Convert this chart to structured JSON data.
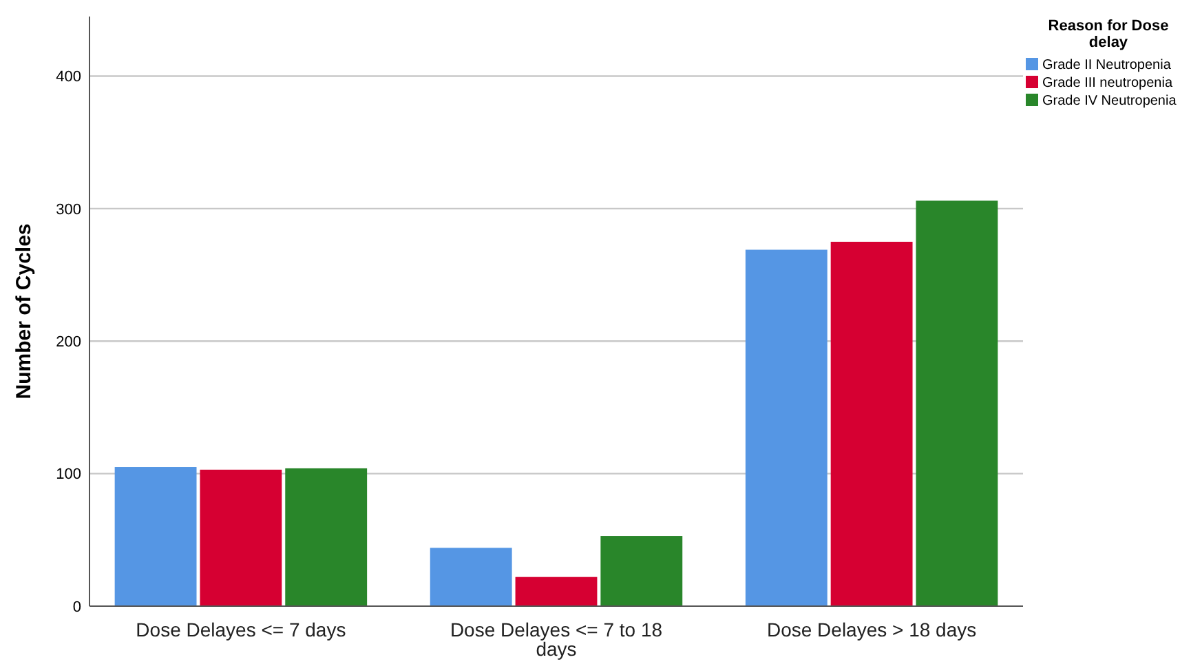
{
  "chart_data": {
    "type": "bar",
    "ylabel": "Number of Cycles",
    "legend_title": "Reason for Dose delay",
    "categories": [
      "Dose Delayes <= 7 days",
      "Dose Delayes <= 7  to 18 days",
      "Dose Delayes > 18 days"
    ],
    "series": [
      {
        "name": "Grade II Neutropenia",
        "color": "#5596e4",
        "values": [
          105,
          44,
          269
        ]
      },
      {
        "name": "Grade III neutropenia",
        "color": "#d60032",
        "values": [
          103,
          22,
          275
        ]
      },
      {
        "name": "Grade IV Neutropenia",
        "color": "#29862a",
        "values": [
          104,
          53,
          306
        ]
      }
    ],
    "ylim": [
      0,
      445
    ],
    "yticks": [
      0,
      100,
      200,
      300,
      400
    ],
    "grid": "y",
    "legend": "top right"
  }
}
